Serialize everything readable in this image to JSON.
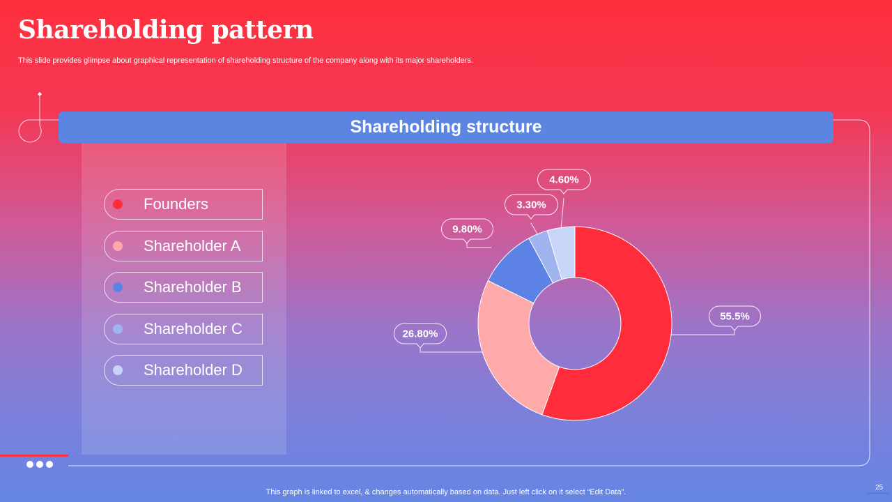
{
  "title": "Shareholding pattern",
  "subtitle": "This slide provides glimpse about graphical representation of shareholding structure of the company along with its major shareholders.",
  "banner": "Shareholding structure",
  "footer": "This graph is linked to excel, & changes automatically based on data. Just left click on it select “Edit Data”.",
  "page_number": "25",
  "legend": [
    {
      "label": "Founders",
      "color": "#ff2d3b"
    },
    {
      "label": "Shareholder A",
      "color": "#ffaaaa"
    },
    {
      "label": "Shareholder B",
      "color": "#5b82e4"
    },
    {
      "label": "Shareholder C",
      "color": "#9fb4ee"
    },
    {
      "label": "Shareholder D",
      "color": "#c9d5f8"
    }
  ],
  "chart_data": {
    "type": "pie",
    "title": "Shareholding structure",
    "categories": [
      "Founders",
      "Shareholder A",
      "Shareholder B",
      "Shareholder C",
      "Shareholder D"
    ],
    "values": [
      55.5,
      26.8,
      9.8,
      3.3,
      4.6
    ],
    "labels": [
      "55.5%",
      "26.80%",
      "9.80%",
      "3.30%",
      "4.60%"
    ],
    "colors": [
      "#ff2d3b",
      "#ffaaaa",
      "#5b82e4",
      "#9fb4ee",
      "#c9d5f8"
    ],
    "donut": true,
    "legend": "left"
  }
}
